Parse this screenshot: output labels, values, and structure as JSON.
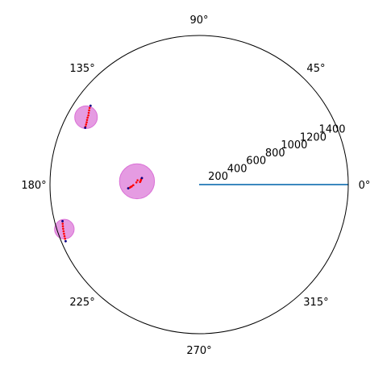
{
  "chart_data": {
    "type": "scatter",
    "projection": "polar",
    "title": "",
    "rlim": [
      0,
      1450
    ],
    "radial_ticks": [
      200,
      400,
      600,
      800,
      1000,
      1200,
      1400
    ],
    "radial_tick_labels": [
      "200",
      "400",
      "600",
      "800",
      "1000",
      "1200",
      "1400"
    ],
    "radial_label_angle_deg": 22.5,
    "angle_ticks_deg": [
      0,
      45,
      90,
      135,
      180,
      225,
      270,
      315
    ],
    "angle_tick_labels": [
      "0°",
      "45°",
      "90°",
      "135°",
      "180°",
      "225°",
      "270°",
      "315°"
    ],
    "grid": false,
    "colors": {
      "line": "#1f77b4",
      "bubbles": "#da70d6",
      "points": "#ff0000",
      "endpoints": "#00008b",
      "frame": "#000000"
    },
    "series": [
      {
        "kind": "line",
        "theta_deg": [
          0,
          0
        ],
        "r": [
          0,
          1450
        ]
      },
      {
        "kind": "bubble",
        "theta_deg": [
          149.2,
          177.0,
          198.3
        ],
        "r": [
          1280,
          605,
          1380
        ],
        "size_r_units": [
          110,
          170,
          95
        ]
      },
      {
        "kind": "points",
        "theta_deg": [
          145.0,
          146.0,
          147.0,
          148.0,
          149.0,
          150.0,
          151.0,
          152.0,
          153.0,
          153.5,
          144.0,
          173.5,
          174.5,
          175.5,
          176.5,
          177.5,
          176.0,
          178.0,
          180.5,
          181.5,
          182.0,
          182.5,
          183.0,
          195.0,
          196.0,
          197.0,
          198.0,
          199.0,
          200.0,
          201.0,
          202.0,
          203.0
        ],
        "r": [
          1300,
          1290,
          1280,
          1270,
          1265,
          1258,
          1250,
          1245,
          1240,
          1238,
          1305,
          560,
          565,
          568,
          570,
          575,
          600,
          610,
          640,
          655,
          665,
          675,
          690,
          1375,
          1380,
          1385,
          1390,
          1394,
          1398,
          1402,
          1406,
          1410
        ]
      },
      {
        "kind": "endpoints",
        "theta_deg": [
          144.0,
          153.5,
          173.5,
          183.0,
          195.0,
          203.0
        ],
        "r": [
          1305,
          1238,
          560,
          690,
          1375,
          1410
        ]
      }
    ]
  }
}
